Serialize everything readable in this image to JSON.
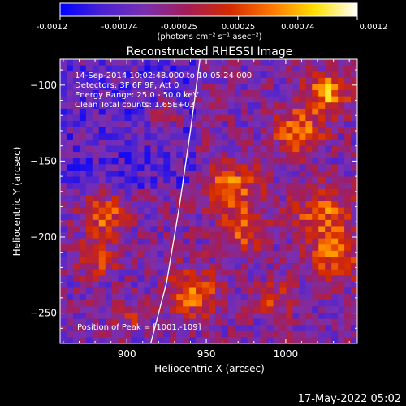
{
  "colorbar": {
    "tick_labels": [
      "-0.0012",
      "-0.00074",
      "-0.00025",
      "0.00025",
      "0.00074",
      "0.0012"
    ],
    "unit_label": "(photons cm⁻² s⁻¹ asec⁻²)",
    "min": -0.0012,
    "max": 0.0012,
    "colors": [
      "#0000ff",
      "#4b22d2",
      "#7a2fb0",
      "#a41d58",
      "#d42a00",
      "#ff7800",
      "#ffe000",
      "#ffffff"
    ]
  },
  "overlay": {
    "lines": [
      "14-Sep-2014 10:02:48.000 to 10:05:24.000",
      "Detectors: 3F 6F 9F, Att 0",
      "Energy Range: 25.0 - 50.0 keV",
      "Clean    Total counts: 1.65E+03"
    ],
    "peak": "Position of Peak = [1001,-109]"
  },
  "footer": {
    "timestamp": "17-May-2022 05:02"
  },
  "chart_data": {
    "type": "heatmap",
    "title": "Reconstructed RHESSI Image",
    "xlabel": "Heliocentric X (arcsec)",
    "ylabel": "Heliocentric Y (arcsec)",
    "xlim": [
      858,
      1045
    ],
    "ylim": [
      -270,
      -83
    ],
    "x_ticks": [
      900,
      950,
      1000
    ],
    "y_ticks": [
      -100,
      -150,
      -200,
      -250
    ],
    "x_tick_labels": [
      "900",
      "950",
      "1000"
    ],
    "y_tick_labels": [
      "−100",
      "−150",
      "−200",
      "−250"
    ],
    "value_range": [
      -0.0012,
      0.0012
    ],
    "peak": [
      1001,
      -109
    ],
    "limb_curve": {
      "x": [
        946,
        940,
        933,
        925,
        915
      ],
      "y": [
        -83,
        -130,
        -180,
        -230,
        -270
      ]
    },
    "grid": false
  }
}
